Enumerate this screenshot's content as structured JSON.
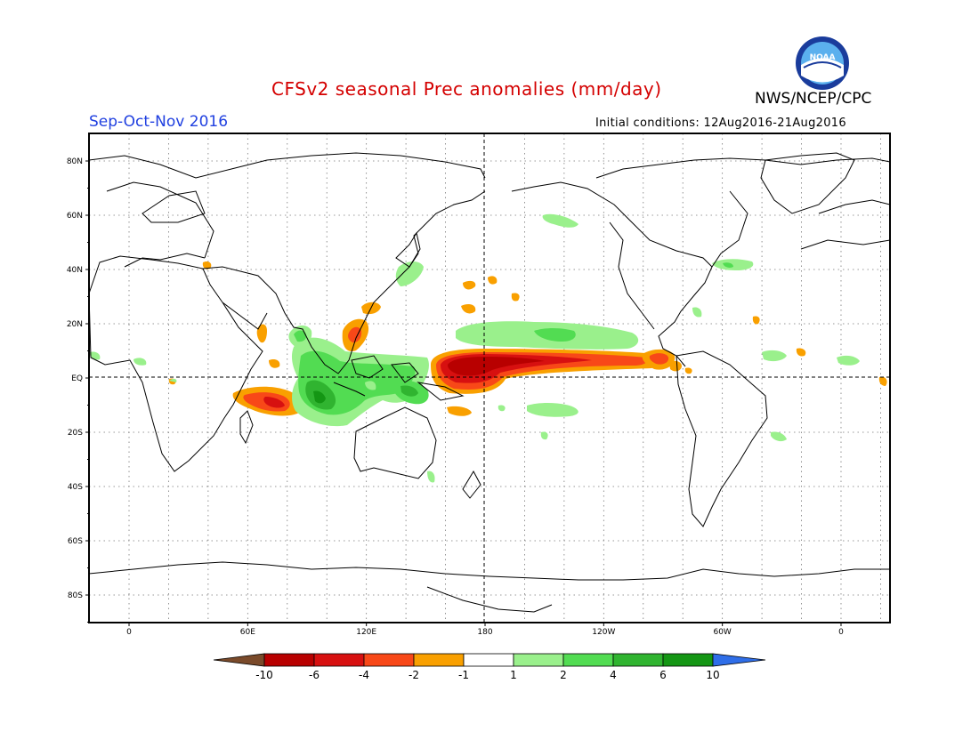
{
  "header": {
    "title": "CFSv2 seasonal Prec anomalies (mm/day)",
    "agency": "NWS/NCEP/CPC",
    "season": "Sep-Oct-Nov 2016",
    "initial_conditions": "Initial conditions: 12Aug2016-21Aug2016",
    "logo_text": "NOAA"
  },
  "map": {
    "lat_labels": [
      "80N",
      "60N",
      "40N",
      "20N",
      "EQ",
      "20S",
      "40S",
      "60S",
      "80S"
    ],
    "lon_labels": [
      "0",
      "60E",
      "120E",
      "180",
      "120W",
      "60W",
      "0"
    ],
    "projection": "cylindrical equidistant",
    "grid": "dotted",
    "reference_lines": [
      "equator",
      "dateline"
    ]
  },
  "colorbar": {
    "labels": [
      "-10",
      "-6",
      "-4",
      "-2",
      "-1",
      "1",
      "2",
      "4",
      "6",
      "10"
    ],
    "colors": [
      "#7a4a2a",
      "#b80000",
      "#d71010",
      "#f84818",
      "#f9a000",
      "#ffffff",
      "#9af08c",
      "#52dc52",
      "#30b430",
      "#149614",
      "#2f6ee8"
    ]
  }
}
